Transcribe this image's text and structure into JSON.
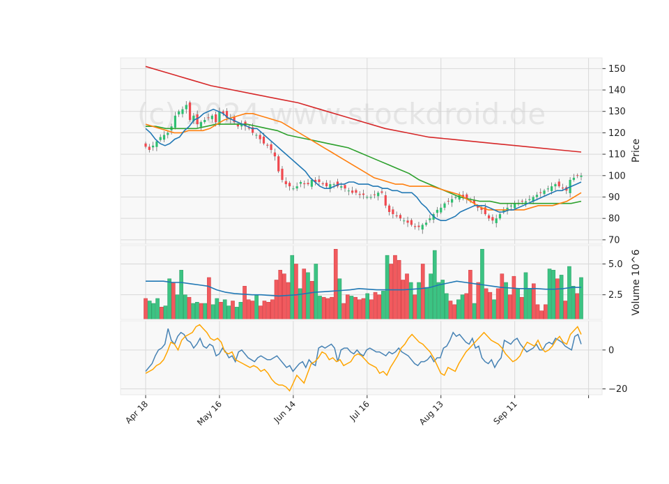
{
  "watermark": "(c) 2024 www.stockdroid.de",
  "colors": {
    "up": "#2fbf71",
    "down": "#f0494f",
    "up_vol": "#3cc383",
    "down_vol": "#f15a5e",
    "sma_short": "#1f77b4",
    "sma_mid": "#ff7f0e",
    "sma_long": "#2ca02c",
    "sma_longest": "#d62728",
    "osc_fast": "#4682b4",
    "osc_slow": "#ffa500",
    "panel_bg": "#f8f8f8",
    "grid": "#d8d8d8"
  },
  "chart_data": [
    {
      "type": "candlestick",
      "ylabel": "Price",
      "ylim": [
        68,
        155
      ],
      "yticks": [
        70,
        80,
        90,
        100,
        110,
        120,
        130,
        140,
        150
      ],
      "x_ticks": [
        "Apr 18",
        "May 16",
        "Jun 14",
        "Jul 16",
        "Aug 13",
        "Sep 11",
        ""
      ],
      "x_tick_index": [
        0,
        20,
        40,
        60,
        80,
        100,
        120
      ],
      "grid": true,
      "close": [
        113.5,
        112,
        114,
        116,
        118,
        119,
        120,
        123,
        128,
        130,
        131,
        133,
        126,
        128,
        124,
        125,
        126,
        127,
        128,
        125,
        130,
        129,
        127,
        127,
        125,
        123,
        124,
        123,
        122,
        120,
        119,
        117,
        115,
        114,
        112,
        109,
        102,
        98,
        96,
        95,
        94,
        95,
        97,
        96,
        96,
        98,
        97,
        97,
        96,
        95,
        96,
        96,
        95,
        95,
        94,
        93,
        92,
        92,
        91,
        91,
        90,
        90,
        91,
        92,
        92,
        86,
        83,
        82,
        81,
        80,
        79,
        78,
        77,
        76,
        76,
        77,
        78,
        80,
        82,
        84,
        85,
        87,
        88,
        89,
        90,
        91,
        90,
        89,
        88,
        87,
        85,
        84,
        82,
        80,
        79,
        80,
        82,
        84,
        85,
        86,
        87,
        87,
        88,
        88,
        89,
        90,
        91,
        92,
        93,
        94,
        95,
        96,
        95,
        94,
        93,
        98,
        99,
        100,
        100
      ],
      "sma_short": [
        122,
        120,
        117,
        115,
        114,
        115,
        117,
        118,
        121,
        123,
        126,
        127,
        129,
        130,
        131,
        130,
        129,
        127,
        126,
        125,
        124,
        123,
        122,
        122,
        120,
        118,
        116,
        114,
        112,
        110,
        108,
        106,
        104,
        102,
        99,
        97,
        95,
        94,
        94,
        95,
        96,
        96,
        97,
        97,
        96,
        96,
        96,
        95,
        95,
        94,
        94,
        93,
        93,
        92,
        92,
        92,
        90,
        87,
        85,
        82,
        80,
        79,
        79,
        80,
        81,
        83,
        84,
        85,
        86,
        86,
        86,
        85,
        84,
        83,
        83,
        84,
        84,
        85,
        86,
        87,
        88,
        89,
        90,
        91,
        92,
        93,
        93,
        94,
        95,
        96,
        97
      ],
      "sma_mid": [
        124,
        123,
        122,
        121,
        120,
        120,
        121,
        121,
        121,
        122,
        124,
        126,
        127,
        128,
        129,
        129,
        128,
        127,
        126,
        125,
        123,
        121,
        119,
        117,
        115,
        113,
        111,
        109,
        107,
        105,
        103,
        101,
        99,
        98,
        97,
        96,
        96,
        95,
        95,
        95,
        95,
        94,
        93,
        92,
        91,
        89,
        87,
        85,
        84,
        84,
        84,
        84,
        84,
        84,
        85,
        86,
        86,
        86,
        87,
        88,
        90,
        92
      ],
      "sma_long": [
        123,
        123,
        122,
        122,
        122,
        122,
        123,
        124,
        124,
        124,
        124,
        123,
        122,
        121,
        119,
        118,
        117,
        116,
        115,
        114,
        113,
        111,
        109,
        107,
        105,
        103,
        101,
        98,
        96,
        94,
        92,
        90,
        89,
        88,
        88,
        87,
        87,
        87,
        87,
        87,
        87,
        87,
        87,
        88
      ],
      "sma_longest": [
        151,
        148,
        145,
        142,
        140,
        138,
        136,
        134,
        131,
        128,
        125,
        122,
        120,
        118,
        117,
        116,
        115,
        114,
        113,
        112,
        111
      ]
    },
    {
      "type": "bar",
      "ylabel": "Volume  10^6",
      "yticks": [
        2.5,
        5.0
      ],
      "ylim": [
        0.5,
        6.5
      ],
      "values": [
        2.2,
        2.0,
        1.8,
        2.2,
        1.5,
        1.6,
        3.8,
        3.5,
        2.5,
        4.5,
        2.5,
        2.3,
        1.8,
        1.9,
        1.8,
        1.8,
        3.9,
        1.7,
        2.2,
        1.9,
        2.1,
        1.6,
        2.0,
        1.5,
        1.9,
        3.2,
        2.1,
        2.0,
        2.5,
        1.6,
        2.0,
        1.9,
        2.1,
        3.7,
        4.5,
        4.2,
        3.5,
        5.7,
        5.0,
        3.0,
        4.6,
        4.3,
        3.6,
        5.0,
        2.4,
        2.3,
        2.2,
        2.3,
        6.2,
        3.8,
        1.8,
        2.5,
        2.4,
        2.3,
        2.1,
        2.2,
        2.6,
        2.1,
        2.7,
        2.5,
        2.8,
        5.7,
        5.0,
        5.7,
        5.3,
        3.7,
        4.2,
        3.5,
        2.5,
        3.5,
        5.0,
        3.1,
        4.2,
        6.1,
        3.5,
        3.7,
        2.6,
        2.0,
        1.7,
        2.1,
        2.5,
        2.6,
        4.5,
        1.8,
        3.5,
        6.2,
        3.0,
        2.7,
        2.1,
        3.0,
        4.2,
        3.5,
        2.5,
        4.0,
        3.0,
        2.3,
        4.3,
        3.0,
        3.4,
        1.7,
        1.2,
        1.7,
        4.6,
        4.5,
        3.8,
        4.1,
        2.0,
        4.8,
        3.2,
        2.6,
        3.9
      ],
      "up": [
        0,
        1,
        1,
        1,
        0,
        1,
        1,
        0,
        1,
        1,
        1,
        0,
        1,
        1,
        0,
        1,
        0,
        1,
        1,
        0,
        1,
        1,
        0,
        1,
        1,
        0,
        0,
        0,
        1,
        0,
        0,
        0,
        0,
        0,
        0,
        0,
        0,
        1,
        0,
        1,
        0,
        1,
        0,
        1,
        1,
        0,
        0,
        0,
        0,
        1,
        0,
        0,
        1,
        0,
        0,
        0,
        1,
        0,
        0,
        0,
        1,
        1,
        0,
        0,
        0,
        0,
        0,
        1,
        0,
        1,
        0,
        1,
        1,
        1,
        1,
        1,
        1,
        0,
        0,
        1,
        1,
        0,
        0,
        1,
        0,
        1,
        0,
        0,
        1,
        0,
        0,
        1,
        0,
        0,
        1,
        0,
        1,
        1,
        0,
        0,
        0,
        0,
        1,
        1,
        0,
        1,
        0,
        1,
        1,
        0,
        1
      ],
      "avg": [
        3.6,
        3.6,
        3.6,
        3.5,
        3.5,
        3.4,
        3.3,
        3.2,
        2.9,
        2.7,
        2.6,
        2.55,
        2.5,
        2.5,
        2.45,
        2.4,
        2.45,
        2.5,
        2.6,
        2.7,
        2.75,
        2.8,
        2.85,
        2.9,
        3.0,
        2.95,
        2.9,
        2.9,
        2.9,
        2.9,
        2.95,
        3.0,
        3.1,
        3.3,
        3.45,
        3.6,
        3.5,
        3.4,
        3.3,
        3.2,
        3.1,
        3.05,
        3.0,
        3.0,
        3.0,
        2.95,
        2.95,
        3.0,
        3.1,
        3.1
      ]
    },
    {
      "type": "line",
      "yticks": [
        -20,
        0
      ],
      "ylim": [
        -23,
        15
      ],
      "series": [
        {
          "values": [
            -11,
            -9,
            -7,
            -3,
            0,
            1,
            3,
            11,
            5,
            3,
            7,
            9,
            8,
            5,
            4,
            1,
            3,
            6,
            2,
            1,
            3,
            2,
            -3,
            -2,
            1,
            -1,
            -4,
            -3,
            -6,
            -1,
            0,
            -2,
            -4,
            -5,
            -6,
            -4,
            -3,
            -4,
            -5,
            -5,
            -4,
            -3,
            -5,
            -7,
            -9,
            -8,
            -11,
            -9,
            -7,
            -6,
            -9,
            -5,
            -7,
            -8,
            1,
            2,
            1,
            2,
            3,
            1,
            -6,
            0,
            1,
            1,
            -1,
            -2,
            0,
            -2,
            -3,
            0,
            1,
            0,
            -1,
            -1,
            -2,
            -3,
            -1,
            -2,
            -1,
            1,
            -1,
            -2,
            -3,
            -5,
            -7,
            -8,
            -6,
            -6,
            -5,
            -3,
            -6,
            -4,
            -4,
            1,
            2,
            5,
            9,
            7,
            8,
            6,
            4,
            3,
            6,
            1,
            2,
            -4,
            -6,
            -7,
            -5,
            -9,
            -6,
            -4,
            5,
            4,
            3,
            5,
            6,
            3,
            1,
            -1,
            0,
            1,
            3,
            0,
            0,
            3,
            4,
            3,
            6,
            5,
            4,
            2,
            1,
            0,
            7,
            8,
            3
          ],
          "color_key": "osc_fast"
        },
        {
          "values": [
            -12,
            -11,
            -10,
            -8,
            -7,
            -5,
            -1,
            4,
            3,
            0,
            5,
            7,
            8,
            9,
            12,
            13,
            11,
            9,
            6,
            5,
            6,
            4,
            -1,
            -2,
            -1,
            -5,
            -6,
            -7,
            -8,
            -9,
            -8,
            -9,
            -11,
            -10,
            -12,
            -15,
            -17,
            -18,
            -18,
            -19,
            -21,
            -17,
            -13,
            -15,
            -17,
            -12,
            -7,
            -6,
            -4,
            -1,
            -2,
            -5,
            -4,
            -6,
            -5,
            -8,
            -7,
            -6,
            -3,
            -2,
            -3,
            -5,
            -7,
            -8,
            -9,
            -12,
            -11,
            -13,
            -9,
            -6,
            -3,
            1,
            3,
            6,
            8,
            6,
            4,
            3,
            1,
            -1,
            -4,
            -8,
            -12,
            -13,
            -9,
            -10,
            -11,
            -7,
            -4,
            -1,
            1,
            3,
            5,
            7,
            9,
            7,
            5,
            4,
            3,
            1,
            -2,
            -4,
            -6,
            -5,
            -3,
            1,
            4,
            3,
            2,
            5,
            1,
            -1,
            0,
            2,
            5,
            7,
            4,
            3,
            8,
            10,
            12,
            8
          ],
          "color_key": "osc_slow"
        }
      ]
    }
  ]
}
